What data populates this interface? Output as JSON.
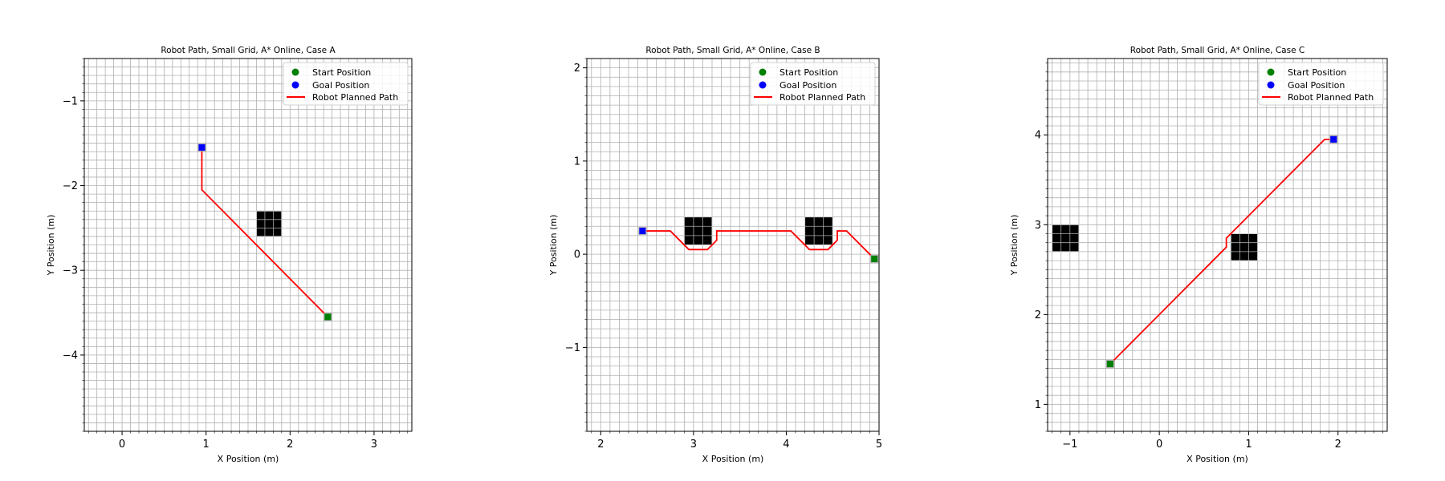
{
  "chart_data": [
    {
      "type": "scatter",
      "title": "Robot Path, Small Grid, A* Online, Case A",
      "xlabel": "X Position (m)",
      "ylabel": "Y Position (m)",
      "xlim": [
        -0.45,
        3.45
      ],
      "ylim": [
        -4.9,
        -0.5
      ],
      "xticks": [
        0,
        1,
        2,
        3
      ],
      "yticks": [
        -4,
        -3,
        -2,
        -1
      ],
      "grid": true,
      "grid_step": 0.1,
      "legend": "top-right",
      "legend_entries": [
        "Start Position",
        "Goal Position",
        "Robot Planned Path"
      ],
      "start": [
        2.45,
        -3.55
      ],
      "goal": [
        0.95,
        -1.55
      ],
      "path": [
        [
          2.45,
          -3.55
        ],
        [
          0.95,
          -2.05
        ],
        [
          0.95,
          -1.55
        ]
      ],
      "obstacles": [
        {
          "x0": 1.6,
          "x1": 1.9,
          "y0": -2.6,
          "y1": -2.3
        }
      ],
      "colors": {
        "start": "#008000",
        "goal": "#0000ff",
        "path": "#ff0000",
        "obstacle": "#000000",
        "grid": "#b0b0b0"
      }
    },
    {
      "type": "scatter",
      "title": "Robot Path, Small Grid, A* Online, Case B",
      "xlabel": "X Position (m)",
      "ylabel": "Y Position (m)",
      "xlim": [
        1.85,
        5.0
      ],
      "ylim": [
        -1.9,
        2.1
      ],
      "xticks": [
        2,
        3,
        4,
        5
      ],
      "yticks": [
        -1,
        0,
        1,
        2
      ],
      "grid": true,
      "grid_step": 0.1,
      "legend": "top-right",
      "legend_entries": [
        "Start Position",
        "Goal Position",
        "Robot Planned Path"
      ],
      "start": [
        4.95,
        -0.05
      ],
      "goal": [
        2.45,
        0.25
      ],
      "path": [
        [
          4.95,
          -0.05
        ],
        [
          4.65,
          0.25
        ],
        [
          4.55,
          0.25
        ],
        [
          4.55,
          0.15
        ],
        [
          4.45,
          0.05
        ],
        [
          4.25,
          0.05
        ],
        [
          4.05,
          0.25
        ],
        [
          3.25,
          0.25
        ],
        [
          3.25,
          0.15
        ],
        [
          3.15,
          0.05
        ],
        [
          2.95,
          0.05
        ],
        [
          2.75,
          0.25
        ],
        [
          2.45,
          0.25
        ]
      ],
      "obstacles": [
        {
          "x0": 2.9,
          "x1": 3.2,
          "y0": 0.1,
          "y1": 0.4
        },
        {
          "x0": 4.2,
          "x1": 4.5,
          "y0": 0.1,
          "y1": 0.4
        }
      ],
      "colors": {
        "start": "#008000",
        "goal": "#0000ff",
        "path": "#ff0000",
        "obstacle": "#000000",
        "grid": "#b0b0b0"
      }
    },
    {
      "type": "scatter",
      "title": "Robot Path, Small Grid, A* Online, Case C",
      "xlabel": "X Position (m)",
      "ylabel": "Y Position (m)",
      "xlim": [
        -1.25,
        2.55
      ],
      "ylim": [
        0.7,
        4.85
      ],
      "xticks": [
        -1,
        0,
        1,
        2
      ],
      "yticks": [
        1,
        2,
        3,
        4
      ],
      "grid": true,
      "grid_step": 0.1,
      "legend": "top-right",
      "legend_entries": [
        "Start Position",
        "Goal Position",
        "Robot Planned Path"
      ],
      "start": [
        -0.55,
        1.45
      ],
      "goal": [
        1.95,
        3.95
      ],
      "path": [
        [
          -0.55,
          1.45
        ],
        [
          0.75,
          2.75
        ],
        [
          0.75,
          2.85
        ],
        [
          1.85,
          3.95
        ],
        [
          1.95,
          3.95
        ]
      ],
      "obstacles": [
        {
          "x0": -1.2,
          "x1": -0.9,
          "y0": 2.7,
          "y1": 3.0
        },
        {
          "x0": 0.8,
          "x1": 1.1,
          "y0": 2.6,
          "y1": 2.9
        }
      ],
      "colors": {
        "start": "#008000",
        "goal": "#0000ff",
        "path": "#ff0000",
        "obstacle": "#000000",
        "grid": "#b0b0b0"
      }
    }
  ]
}
